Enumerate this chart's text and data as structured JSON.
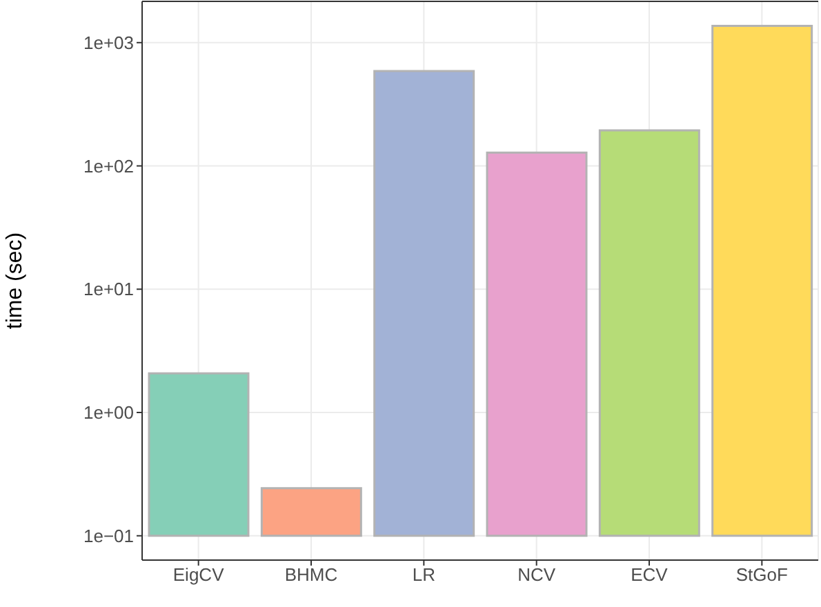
{
  "chart_data": {
    "type": "bar",
    "ylabel": "time (sec)",
    "categories": [
      "EigCV",
      "BHMC",
      "LR",
      "NCV",
      "ECV",
      "StGoF"
    ],
    "base": [
      0.1,
      0.1,
      0.1,
      0.1,
      0.1,
      0.1
    ],
    "values": [
      1.98,
      0.143,
      588,
      128,
      194,
      1368
    ],
    "colors": [
      "#85cfb7",
      "#fca383",
      "#a2b2d6",
      "#e8a1cd",
      "#b6dc77",
      "#ffda5a"
    ],
    "log": "y",
    "ylim": [
      0.0635,
      2160
    ],
    "yticks": [
      {
        "value": 0.1,
        "label": "1e−01"
      },
      {
        "value": 1,
        "label": "1e+00"
      },
      {
        "value": 10,
        "label": "1e+01"
      },
      {
        "value": 100,
        "label": "1e+02"
      },
      {
        "value": 1000,
        "label": "1e+03"
      }
    ],
    "grid": true
  }
}
